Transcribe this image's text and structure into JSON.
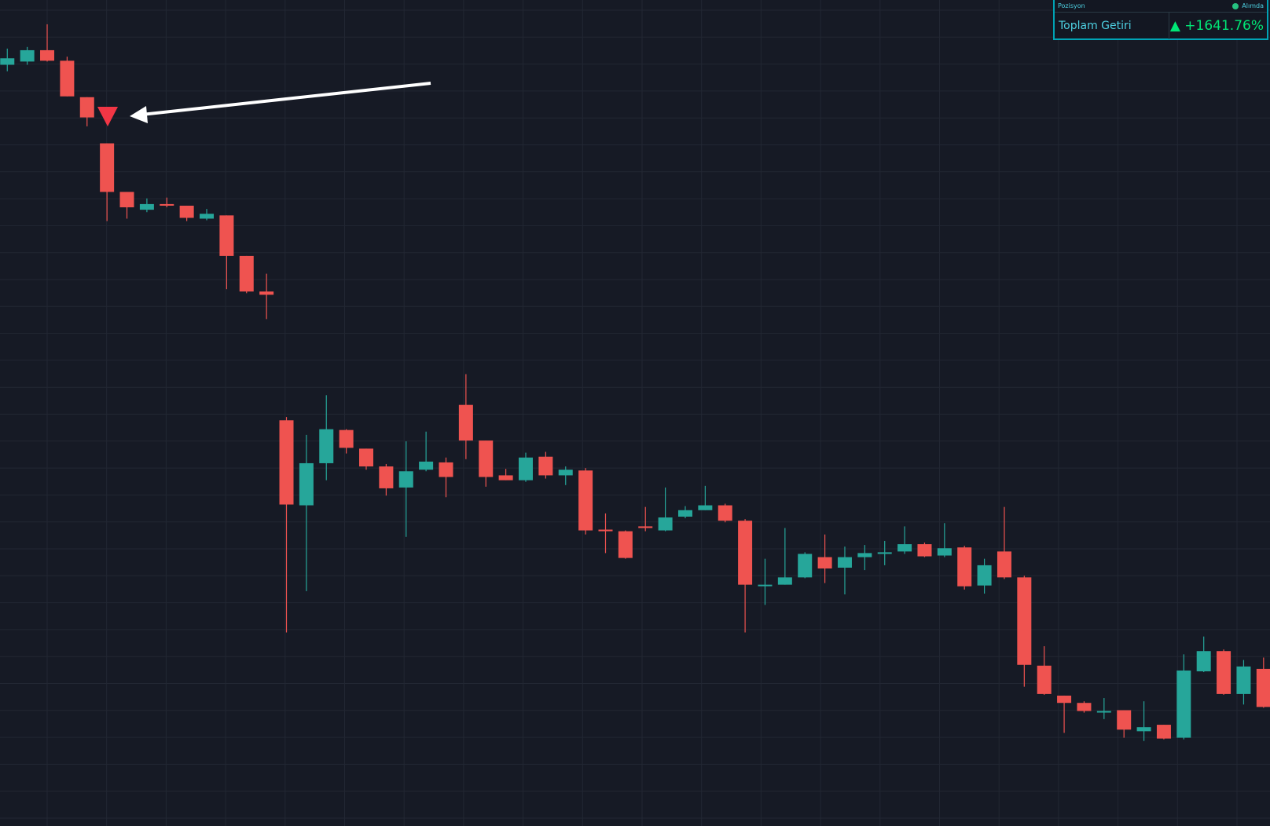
{
  "chart_data": {
    "type": "candlestick",
    "up_color": "#26a69a",
    "down_color": "#ef5350",
    "ylim": [
      0,
      1020
    ],
    "grid": true,
    "open": [
      940,
      944,
      958,
      945,
      900,
      843,
      783,
      761,
      768,
      766,
      750,
      754,
      704,
      660,
      501,
      396,
      448,
      489,
      466,
      444,
      418,
      440,
      449,
      520,
      476,
      433,
      427,
      456,
      433,
      439,
      366,
      364,
      370,
      365,
      382,
      390,
      396,
      377,
      297,
      298,
      307,
      332,
      319,
      332,
      336,
      339,
      348,
      334,
      344,
      297,
      339,
      307,
      198,
      161,
      152,
      141,
      143,
      117,
      125,
      109,
      191,
      216,
      163,
      194
    ],
    "high": [
      960,
      962,
      990,
      950,
      900,
      843,
      783,
      775,
      776,
      766,
      762,
      754,
      704,
      682,
      505,
      483,
      532,
      490,
      466,
      447,
      475,
      487,
      455,
      558,
      476,
      441,
      461,
      462,
      444,
      442,
      386,
      365,
      394,
      418,
      395,
      420,
      398,
      379,
      330,
      368,
      338,
      360,
      345,
      347,
      352,
      370,
      350,
      374,
      346,
      330,
      394,
      309,
      222,
      161,
      154,
      158,
      143,
      154,
      125,
      212,
      234,
      218,
      205,
      208
    ],
    "low": [
      932,
      940,
      944,
      901,
      864,
      747,
      750,
      758,
      764,
      747,
      748,
      663,
      658,
      626,
      239,
      290,
      427,
      460,
      440,
      408,
      357,
      438,
      406,
      453,
      419,
      427,
      425,
      429,
      421,
      360,
      337,
      330,
      364,
      364,
      380,
      390,
      375,
      239,
      273,
      298,
      306,
      300,
      286,
      316,
      322,
      336,
      332,
      332,
      292,
      287,
      305,
      172,
      162,
      115,
      140,
      132,
      109,
      105,
      107,
      107,
      190,
      162,
      150,
      146
    ],
    "close": [
      948,
      958,
      945,
      901,
      875,
      783,
      764,
      768,
      766,
      751,
      756,
      704,
      660,
      656,
      397,
      448,
      490,
      467,
      444,
      417,
      438,
      450,
      431,
      476,
      431,
      427,
      455,
      433,
      440,
      365,
      364,
      331,
      368,
      381,
      390,
      396,
      377,
      298,
      298,
      307,
      336,
      318,
      332,
      337,
      338,
      348,
      333,
      343,
      296,
      322,
      307,
      199,
      163,
      152,
      142,
      142,
      119,
      122,
      108,
      192,
      216,
      163,
      197,
      147
    ]
  },
  "panel": {
    "header": "Pozisyon",
    "status": "Alımda",
    "label": "Toplam Getiri",
    "total_return": "+1641.76%"
  }
}
